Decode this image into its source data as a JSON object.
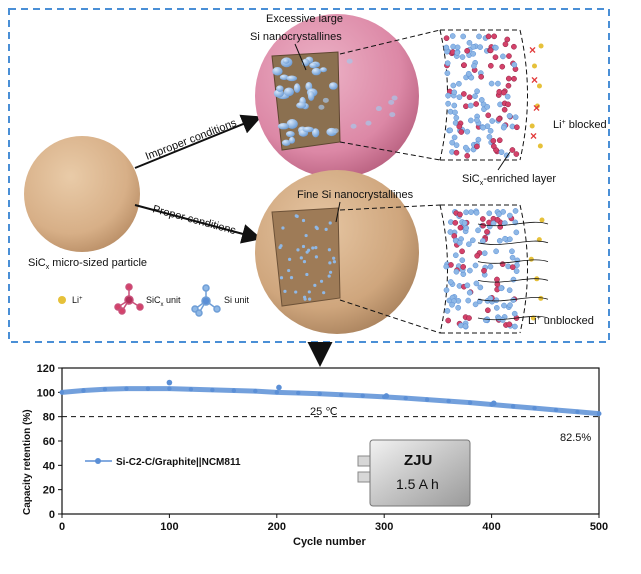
{
  "schematic": {
    "labels": {
      "excessive_line1": "Excessive large",
      "excessive_line2": "Si nanocrystallines",
      "improper": "Improper conditions",
      "proper": "Proper conditions",
      "fine_si": "Fine Si nanocrystallines",
      "particle_main": "SiC",
      "particle_sub": "x",
      "particle_rest": " micro-sized particle",
      "li_blocked_pre": "Li",
      "li_blocked_sup": "+",
      "li_blocked_post": " blocked",
      "li_unblocked_pre": "Li",
      "li_unblocked_sup": "+",
      "li_unblocked_post": " unblocked",
      "sic_layer_pre": "SiC",
      "sic_layer_sub": "x",
      "sic_layer_post": "-enriched layer"
    },
    "legend": {
      "li_pre": "Li",
      "li_sup": "+",
      "sic_pre": "SiC",
      "sic_sub": "x",
      "sic_post": " unit",
      "si": "Si unit"
    },
    "colors": {
      "dashed_border": "#4a8fd6",
      "particle": "#d9b48f",
      "pink_shell": "#dd8aa8",
      "si_blue": "#8fb8e6",
      "sic_red": "#d4426a",
      "li_yellow": "#e6c13a"
    }
  },
  "chart_data": {
    "type": "scatter",
    "xlabel": "Cycle number",
    "ylabel": "Capacity retention (%)",
    "xlim": [
      0,
      500
    ],
    "ylim": [
      0,
      120
    ],
    "xticks": [
      "0",
      "100",
      "200",
      "300",
      "400",
      "500"
    ],
    "yticks": [
      "0",
      "20",
      "40",
      "60",
      "80",
      "100",
      "120"
    ],
    "annotations": {
      "temperature": "25 ℃",
      "final_value": "82.5%",
      "reference_line_value": 80
    },
    "series": [
      {
        "name": "Si-C2-C/Graphite||NCM811",
        "color": "#5b8fd6",
        "x": [
          0,
          20,
          40,
          60,
          80,
          100,
          120,
          140,
          160,
          180,
          200,
          220,
          240,
          260,
          280,
          300,
          320,
          340,
          360,
          380,
          400,
          420,
          440,
          460,
          480,
          500
        ],
        "y": [
          100,
          101.5,
          102.5,
          103,
          103,
          103,
          102.5,
          102,
          101.5,
          101,
          100,
          99.5,
          98.8,
          98,
          97.2,
          96.3,
          95.2,
          94,
          92.8,
          91.5,
          90,
          88.5,
          87,
          85.5,
          84,
          82.5
        ]
      },
      {
        "name": "",
        "color": "#5b8fd6",
        "x": [
          100,
          202,
          302,
          402
        ],
        "y": [
          108,
          104,
          97,
          91
        ]
      }
    ],
    "legend": {
      "label": "Si-C2-C/Graphite||NCM811",
      "placement": "left-middle"
    },
    "cell": {
      "label": "ZJU",
      "capacity": "1.5 A h"
    }
  }
}
